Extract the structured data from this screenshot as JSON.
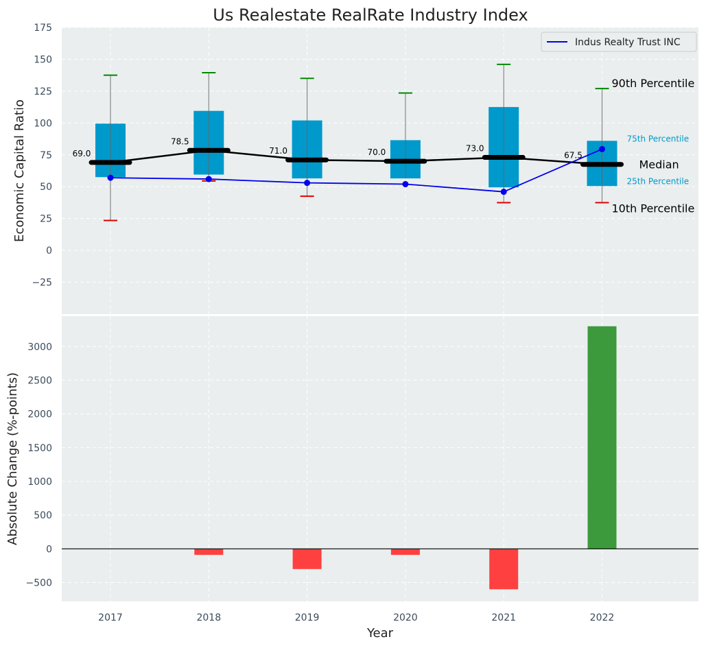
{
  "chart_data": [
    {
      "type": "box",
      "title": "Us Realestate RealRate Industry Index",
      "xlabel": "",
      "ylabel": "Economic Capital Ratio",
      "ylim": [
        -50,
        175
      ],
      "yticks": [
        -25,
        0,
        25,
        50,
        75,
        100,
        125,
        150,
        175
      ],
      "categories": [
        "2017",
        "2018",
        "2019",
        "2020",
        "2021",
        "2022"
      ],
      "grid": true,
      "legend_position": "top-right",
      "boxes": [
        {
          "year": "2017",
          "p10": 23.5,
          "p25": 57.5,
          "median": 69.0,
          "p75": 99.5,
          "p90": 137.5
        },
        {
          "year": "2018",
          "p10": 54.5,
          "p25": 59.5,
          "median": 78.5,
          "p75": 109.5,
          "p90": 139.5
        },
        {
          "year": "2019",
          "p10": 42.5,
          "p25": 56.5,
          "median": 71.0,
          "p75": 102.0,
          "p90": 135.0
        },
        {
          "year": "2020",
          "p10": null,
          "p25": 56.5,
          "median": 70.0,
          "p75": 86.5,
          "p90": 123.5
        },
        {
          "year": "2021",
          "p10": 37.5,
          "p25": 49.5,
          "median": 73.0,
          "p75": 112.5,
          "p90": 146.0
        },
        {
          "year": "2022",
          "p10": 37.5,
          "p25": 50.5,
          "median": 67.5,
          "p75": 86.0,
          "p90": 127.0
        }
      ],
      "median_labels": [
        "69.0",
        "78.5",
        "71.0",
        "70.0",
        "73.0",
        "67.5"
      ],
      "series": [
        {
          "name": "Indus Realty Trust INC",
          "values": [
            57.0,
            56.0,
            53.0,
            52.0,
            46.0,
            79.5
          ],
          "color": "#0000ee"
        }
      ],
      "annotations": {
        "p90": "90th Percentile",
        "p75": "75th Percentile",
        "median": "Median",
        "p25": "25th Percentile",
        "p10": "10th Percentile"
      },
      "colors": {
        "box": "#0099cc",
        "median": "#000000",
        "p90_cap": "#008800",
        "p10_cap": "#dd0000",
        "background": "#eaeeee",
        "tick_text": "#3a4a5a"
      }
    },
    {
      "type": "bar",
      "xlabel": "Year",
      "ylabel": "Absolute Change (%-points)",
      "ylim": [
        -780,
        3450
      ],
      "yticks": [
        -500,
        0,
        500,
        1000,
        1500,
        2000,
        2500,
        3000
      ],
      "categories": [
        "2017",
        "2018",
        "2019",
        "2020",
        "2021",
        "2022"
      ],
      "values": [
        0,
        -90,
        -300,
        -90,
        -600,
        3300
      ],
      "grid": true,
      "colors": {
        "positive": "#3c9a3c",
        "negative": "#ff4040"
      }
    }
  ]
}
